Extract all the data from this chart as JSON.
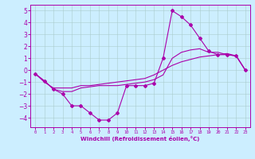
{
  "xlabel": "Windchill (Refroidissement éolien,°C)",
  "bg_color": "#cceeff",
  "line_color": "#aa00aa",
  "xlim": [
    -0.5,
    23.5
  ],
  "ylim": [
    -4.8,
    5.5
  ],
  "xticks": [
    0,
    1,
    2,
    3,
    4,
    5,
    6,
    7,
    8,
    9,
    10,
    11,
    12,
    13,
    14,
    15,
    16,
    17,
    18,
    19,
    20,
    21,
    22,
    23
  ],
  "yticks": [
    -4,
    -3,
    -2,
    -1,
    0,
    1,
    2,
    3,
    4,
    5
  ],
  "curve1_x": [
    0,
    1,
    2,
    3,
    4,
    5,
    6,
    7,
    8,
    9,
    10,
    11,
    12,
    13,
    14,
    15,
    16,
    17,
    18,
    19,
    20,
    21,
    22,
    23
  ],
  "curve1_y": [
    -0.3,
    -0.9,
    -1.6,
    -2.0,
    -3.0,
    -3.0,
    -3.6,
    -4.2,
    -4.2,
    -3.6,
    -1.3,
    -1.3,
    -1.3,
    -1.1,
    1.0,
    5.0,
    4.5,
    3.8,
    2.7,
    1.6,
    1.3,
    1.3,
    1.2,
    0.0
  ],
  "curve2_x": [
    0,
    1,
    2,
    3,
    4,
    5,
    6,
    7,
    8,
    9,
    10,
    11,
    12,
    13,
    14,
    15,
    16,
    17,
    18,
    19,
    20,
    21,
    22,
    23
  ],
  "curve2_y": [
    -0.3,
    -0.9,
    -1.6,
    -1.8,
    -1.8,
    -1.5,
    -1.4,
    -1.3,
    -1.3,
    -1.3,
    -1.2,
    -1.1,
    -1.0,
    -0.8,
    -0.4,
    1.0,
    1.5,
    1.7,
    1.8,
    1.5,
    1.5,
    1.3,
    1.2,
    0.0
  ],
  "curve3_x": [
    0,
    1,
    2,
    3,
    4,
    5,
    6,
    7,
    8,
    9,
    10,
    11,
    12,
    13,
    14,
    15,
    16,
    17,
    18,
    19,
    20,
    21,
    22,
    23
  ],
  "curve3_y": [
    -0.3,
    -1.0,
    -1.5,
    -1.5,
    -1.5,
    -1.3,
    -1.3,
    -1.2,
    -1.1,
    -1.0,
    -0.9,
    -0.8,
    -0.7,
    -0.4,
    0.0,
    0.4,
    0.7,
    0.9,
    1.1,
    1.2,
    1.3,
    1.4,
    1.2,
    0.0
  ]
}
